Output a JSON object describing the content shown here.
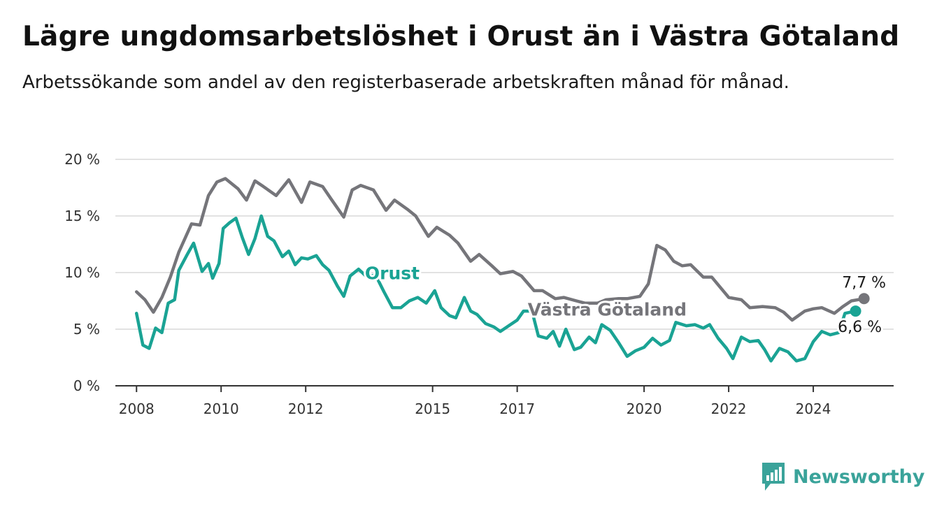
{
  "title": "Lägre ungdomsarbetslöshet i Orust än i Västra Götaland",
  "subtitle": "Arbetssökande som andel av den registerbaserade arbetskraften månad för månad.",
  "brand": {
    "name": "Newsworthy",
    "color": "#3aa39a",
    "icon": "bar-chart-logo-icon"
  },
  "chart_data": {
    "type": "line",
    "title": "Lägre ungdomsarbetslöshet i Orust än i Västra Götaland",
    "subtitle": "Arbetssökande som andel av den registerbaserade arbetskraften månad för månad.",
    "xlabel": "",
    "ylabel": "",
    "xlim": [
      2007.5,
      2025.9
    ],
    "ylim": [
      0,
      20
    ],
    "x_ticks": [
      {
        "label": "2008",
        "value": 2008.0
      },
      {
        "label": "2010",
        "value": 2010.0
      },
      {
        "label": "2012",
        "value": 2012.0
      },
      {
        "label": "2015",
        "value": 2015.0
      },
      {
        "label": "2017",
        "value": 2017.0
      },
      {
        "label": "2020",
        "value": 2020.0
      },
      {
        "label": "2022",
        "value": 2022.0
      },
      {
        "label": "2024",
        "value": 2024.0
      }
    ],
    "y_ticks": [
      {
        "label": "0 %",
        "value": 0
      },
      {
        "label": "5 %",
        "value": 5
      },
      {
        "label": "10 %",
        "value": 10
      },
      {
        "label": "15 %",
        "value": 15
      },
      {
        "label": "20 %",
        "value": 20
      }
    ],
    "grid": true,
    "legend": "inline labels",
    "series": [
      {
        "name": "Västra Götaland",
        "color": "#75757a",
        "end_label": "7,7 %",
        "points": [
          [
            2008.0,
            8.3
          ],
          [
            2008.2,
            7.6
          ],
          [
            2008.4,
            6.5
          ],
          [
            2008.6,
            7.8
          ],
          [
            2008.8,
            9.6
          ],
          [
            2009.0,
            11.8
          ],
          [
            2009.3,
            14.3
          ],
          [
            2009.5,
            14.2
          ],
          [
            2009.7,
            16.8
          ],
          [
            2009.9,
            18.0
          ],
          [
            2010.1,
            18.3
          ],
          [
            2010.4,
            17.4
          ],
          [
            2010.6,
            16.4
          ],
          [
            2010.8,
            18.1
          ],
          [
            2011.0,
            17.6
          ],
          [
            2011.3,
            16.8
          ],
          [
            2011.6,
            18.2
          ],
          [
            2011.9,
            16.2
          ],
          [
            2012.1,
            18.0
          ],
          [
            2012.4,
            17.6
          ],
          [
            2012.6,
            16.5
          ],
          [
            2012.9,
            14.9
          ],
          [
            2013.1,
            17.3
          ],
          [
            2013.3,
            17.7
          ],
          [
            2013.6,
            17.3
          ],
          [
            2013.9,
            15.5
          ],
          [
            2014.1,
            16.4
          ],
          [
            2014.4,
            15.6
          ],
          [
            2014.6,
            15.0
          ],
          [
            2014.9,
            13.2
          ],
          [
            2015.1,
            14.0
          ],
          [
            2015.4,
            13.3
          ],
          [
            2015.6,
            12.6
          ],
          [
            2015.9,
            11.0
          ],
          [
            2016.1,
            11.6
          ],
          [
            2016.4,
            10.6
          ],
          [
            2016.6,
            9.9
          ],
          [
            2016.9,
            10.1
          ],
          [
            2017.1,
            9.7
          ],
          [
            2017.4,
            8.4
          ],
          [
            2017.6,
            8.4
          ],
          [
            2017.9,
            7.7
          ],
          [
            2018.1,
            7.8
          ],
          [
            2018.4,
            7.5
          ],
          [
            2018.6,
            7.3
          ],
          [
            2018.9,
            7.3
          ],
          [
            2019.1,
            7.6
          ],
          [
            2019.4,
            7.7
          ],
          [
            2019.6,
            7.7
          ],
          [
            2019.9,
            7.9
          ],
          [
            2020.1,
            9.0
          ],
          [
            2020.3,
            12.4
          ],
          [
            2020.5,
            12.0
          ],
          [
            2020.7,
            11.0
          ],
          [
            2020.9,
            10.6
          ],
          [
            2021.1,
            10.7
          ],
          [
            2021.4,
            9.6
          ],
          [
            2021.6,
            9.6
          ],
          [
            2021.8,
            8.7
          ],
          [
            2022.0,
            7.8
          ],
          [
            2022.3,
            7.6
          ],
          [
            2022.5,
            6.9
          ],
          [
            2022.8,
            7.0
          ],
          [
            2023.1,
            6.9
          ],
          [
            2023.3,
            6.5
          ],
          [
            2023.5,
            5.8
          ],
          [
            2023.8,
            6.6
          ],
          [
            2024.0,
            6.8
          ],
          [
            2024.2,
            6.9
          ],
          [
            2024.5,
            6.4
          ],
          [
            2024.7,
            7.0
          ],
          [
            2024.9,
            7.5
          ],
          [
            2025.2,
            7.7
          ]
        ]
      },
      {
        "name": "Orust",
        "color": "#1aa394",
        "end_label": "6,6 %",
        "points": [
          [
            2008.0,
            6.4
          ],
          [
            2008.15,
            3.6
          ],
          [
            2008.3,
            3.3
          ],
          [
            2008.45,
            5.1
          ],
          [
            2008.6,
            4.7
          ],
          [
            2008.75,
            7.3
          ],
          [
            2008.9,
            7.6
          ],
          [
            2009.0,
            10.2
          ],
          [
            2009.2,
            11.6
          ],
          [
            2009.35,
            12.6
          ],
          [
            2009.55,
            10.1
          ],
          [
            2009.7,
            10.8
          ],
          [
            2009.8,
            9.5
          ],
          [
            2009.95,
            10.8
          ],
          [
            2010.05,
            13.9
          ],
          [
            2010.2,
            14.4
          ],
          [
            2010.35,
            14.8
          ],
          [
            2010.5,
            13.1
          ],
          [
            2010.65,
            11.6
          ],
          [
            2010.8,
            13.0
          ],
          [
            2010.95,
            15.0
          ],
          [
            2011.1,
            13.2
          ],
          [
            2011.25,
            12.8
          ],
          [
            2011.45,
            11.4
          ],
          [
            2011.6,
            11.9
          ],
          [
            2011.75,
            10.7
          ],
          [
            2011.9,
            11.3
          ],
          [
            2012.05,
            11.2
          ],
          [
            2012.25,
            11.5
          ],
          [
            2012.4,
            10.7
          ],
          [
            2012.55,
            10.2
          ],
          [
            2012.75,
            8.8
          ],
          [
            2012.9,
            7.9
          ],
          [
            2013.05,
            9.7
          ],
          [
            2013.25,
            10.3
          ],
          [
            2013.45,
            9.6
          ],
          [
            2013.65,
            9.8
          ],
          [
            2013.85,
            8.3
          ],
          [
            2014.05,
            6.9
          ],
          [
            2014.25,
            6.9
          ],
          [
            2014.45,
            7.5
          ],
          [
            2014.65,
            7.8
          ],
          [
            2014.85,
            7.3
          ],
          [
            2015.05,
            8.4
          ],
          [
            2015.2,
            6.9
          ],
          [
            2015.4,
            6.2
          ],
          [
            2015.55,
            6.0
          ],
          [
            2015.75,
            7.8
          ],
          [
            2015.9,
            6.6
          ],
          [
            2016.05,
            6.3
          ],
          [
            2016.25,
            5.5
          ],
          [
            2016.45,
            5.2
          ],
          [
            2016.6,
            4.8
          ],
          [
            2016.8,
            5.3
          ],
          [
            2017.0,
            5.8
          ],
          [
            2017.15,
            6.6
          ],
          [
            2017.35,
            6.6
          ],
          [
            2017.5,
            4.4
          ],
          [
            2017.7,
            4.2
          ],
          [
            2017.85,
            4.8
          ],
          [
            2018.0,
            3.5
          ],
          [
            2018.15,
            5.0
          ],
          [
            2018.35,
            3.2
          ],
          [
            2018.5,
            3.4
          ],
          [
            2018.7,
            4.3
          ],
          [
            2018.85,
            3.8
          ],
          [
            2019.0,
            5.4
          ],
          [
            2019.2,
            4.9
          ],
          [
            2019.4,
            3.8
          ],
          [
            2019.6,
            2.6
          ],
          [
            2019.8,
            3.1
          ],
          [
            2020.0,
            3.4
          ],
          [
            2020.2,
            4.2
          ],
          [
            2020.4,
            3.6
          ],
          [
            2020.6,
            4.0
          ],
          [
            2020.75,
            5.6
          ],
          [
            2021.0,
            5.3
          ],
          [
            2021.2,
            5.4
          ],
          [
            2021.4,
            5.1
          ],
          [
            2021.55,
            5.4
          ],
          [
            2021.75,
            4.2
          ],
          [
            2021.95,
            3.3
          ],
          [
            2022.1,
            2.4
          ],
          [
            2022.3,
            4.3
          ],
          [
            2022.5,
            3.9
          ],
          [
            2022.7,
            4.0
          ],
          [
            2022.85,
            3.2
          ],
          [
            2023.0,
            2.2
          ],
          [
            2023.2,
            3.3
          ],
          [
            2023.4,
            3.0
          ],
          [
            2023.6,
            2.2
          ],
          [
            2023.8,
            2.4
          ],
          [
            2024.0,
            3.9
          ],
          [
            2024.2,
            4.8
          ],
          [
            2024.4,
            4.5
          ],
          [
            2024.6,
            4.7
          ],
          [
            2024.75,
            6.4
          ],
          [
            2025.0,
            6.6
          ]
        ]
      }
    ]
  }
}
